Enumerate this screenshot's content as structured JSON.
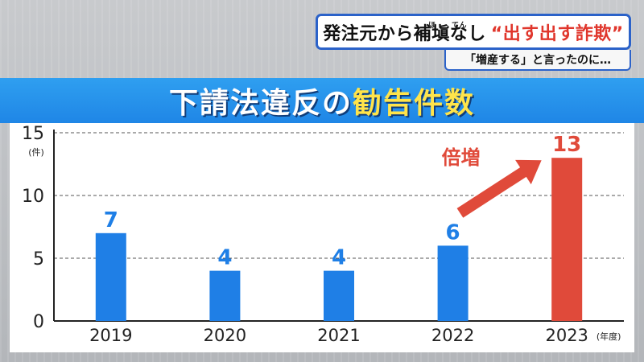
{
  "headline": {
    "main": "発注元から補塡なし",
    "accent": "“出す出す詐欺”",
    "ruby_1": "ほ",
    "ruby_2": "てん"
  },
  "subhead": "「増産する」と言ったのに…",
  "banner": {
    "title_main": "下請法違反の",
    "title_highlight": "勧告件数"
  },
  "chart_data": {
    "type": "bar",
    "categories": [
      "2019",
      "2020",
      "2021",
      "2022",
      "2023"
    ],
    "values": [
      7,
      4,
      4,
      6,
      13
    ],
    "ylim": [
      0,
      15
    ],
    "yticks": [
      0,
      5,
      10,
      15
    ],
    "y_unit_label": "(件)",
    "x_unit_label": "(年度)",
    "grid": true,
    "annotation": "倍増",
    "colors": {
      "bar": "#1f7fe6",
      "bar_highlight": "#e04a3a",
      "label": "#1f7fe6",
      "label_highlight": "#e04a3a",
      "arrow": "#e04a3a"
    },
    "highlight_index": 4
  }
}
